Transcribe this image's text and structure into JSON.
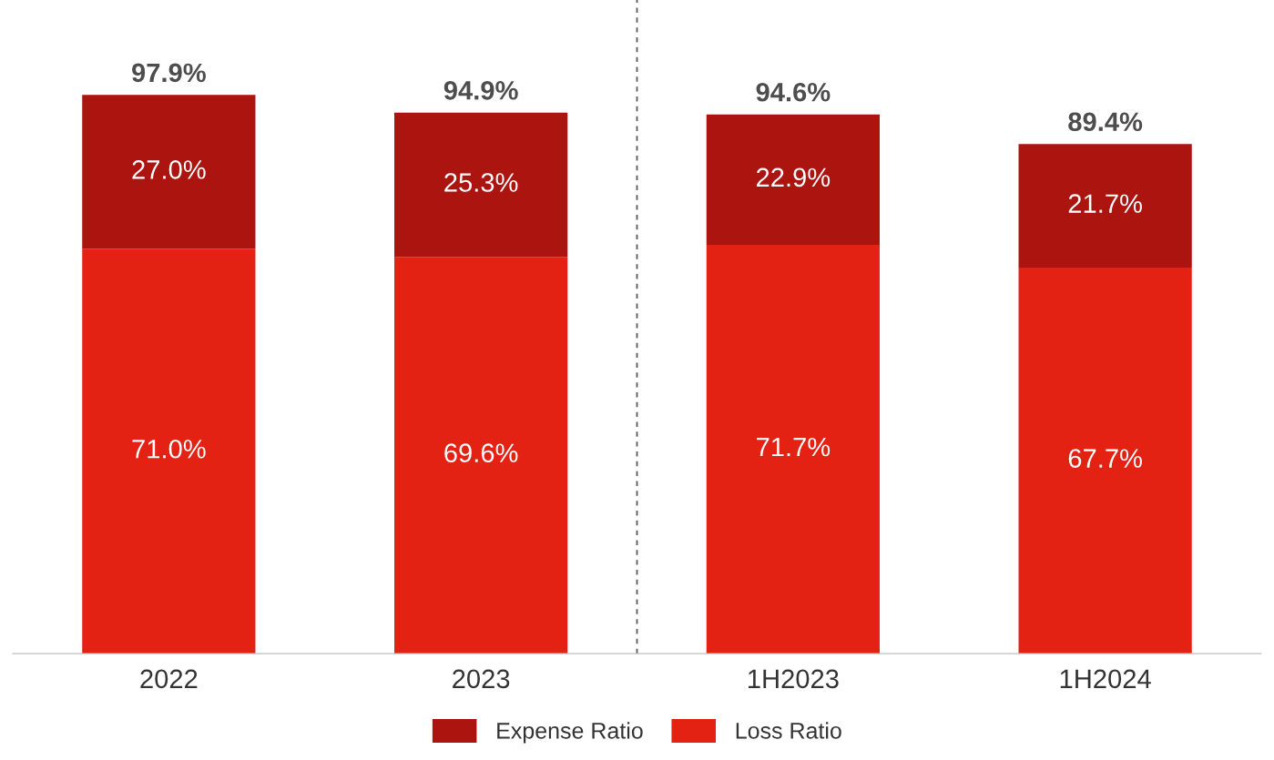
{
  "chart_data": {
    "type": "bar",
    "stacked": true,
    "legend": "bottom",
    "grid": false,
    "categories": [
      "2022",
      "2023",
      "1H2023",
      "1H2024"
    ],
    "series": [
      {
        "name": "Loss Ratio",
        "color": "#e32213",
        "values": [
          71.0,
          69.6,
          71.7,
          67.7
        ],
        "value_labels": [
          "71.0%",
          "69.6%",
          "71.7%",
          "67.7%"
        ]
      },
      {
        "name": "Expense Ratio",
        "color": "#ac1410",
        "values": [
          27.0,
          25.3,
          22.9,
          21.7
        ],
        "value_labels": [
          "27.0%",
          "25.3%",
          "22.9%",
          "21.7%"
        ]
      }
    ],
    "totals": [
      "97.9%",
      "94.9%",
      "94.6%",
      "89.4%"
    ]
  }
}
